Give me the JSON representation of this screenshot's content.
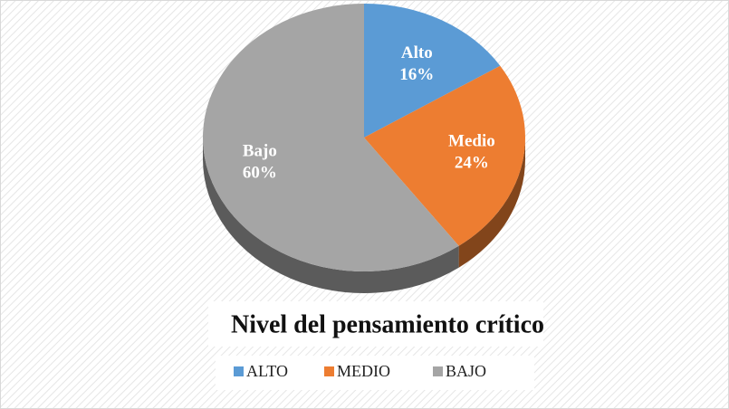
{
  "chart_data": {
    "type": "pie",
    "title": "Nivel del pensamiento crítico",
    "categories": [
      "ALTO",
      "MEDIO",
      "BAJO"
    ],
    "slice_labels": [
      "Alto",
      "Medio",
      "Bajo"
    ],
    "values": [
      16,
      24,
      60
    ],
    "value_labels": [
      "16%",
      "24%",
      "60%"
    ],
    "colors": [
      "#5b9bd5",
      "#ed7d31",
      "#a5a5a5"
    ],
    "legend": "bottom"
  }
}
